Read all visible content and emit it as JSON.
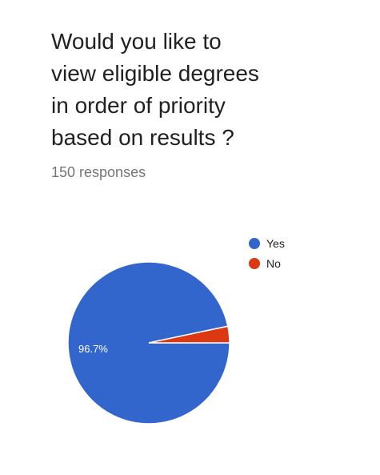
{
  "question": {
    "lines": [
      "Would you like to",
      "view eligible degrees",
      "in order of priority",
      "based on results ?"
    ]
  },
  "responses_label": "150 responses",
  "chart_data": {
    "type": "pie",
    "categories": [
      "Yes",
      "No"
    ],
    "values": [
      96.7,
      3.3
    ],
    "colors": [
      "#3366cc",
      "#dc3912"
    ],
    "data_labels": [
      "96.7%",
      ""
    ],
    "legend": {
      "entries": [
        "Yes",
        "No"
      ],
      "position": "right"
    }
  }
}
